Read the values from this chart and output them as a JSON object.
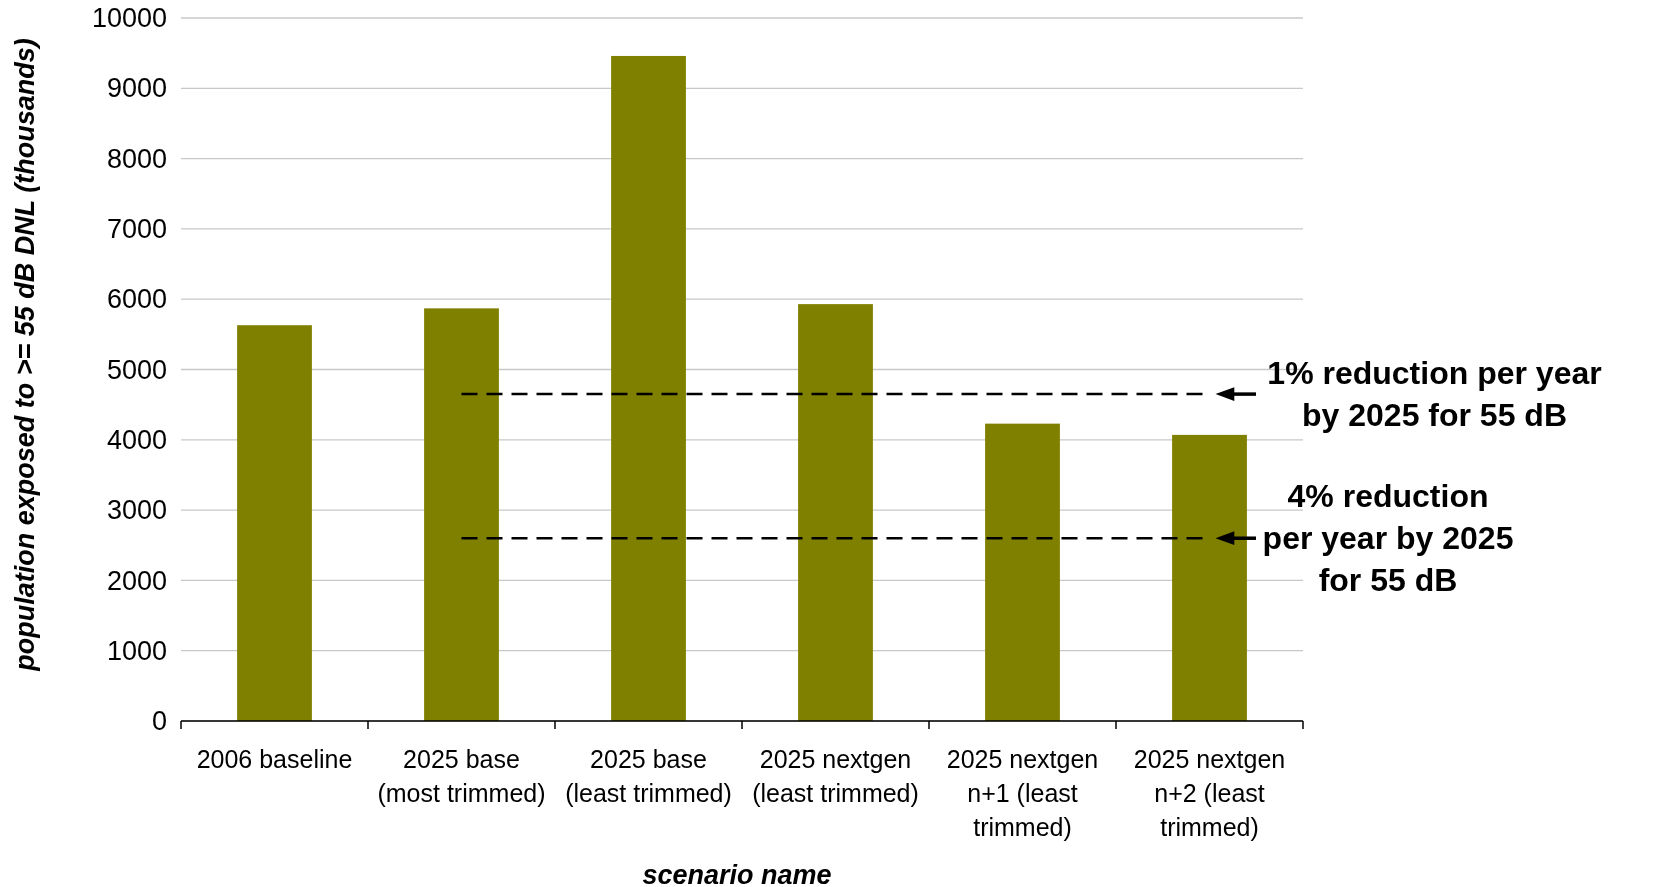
{
  "chart_data": {
    "type": "bar",
    "xlabel": "scenario name",
    "ylabel": "population exposed to >= 55 dB DNL (thousands)",
    "categories": [
      "2006 baseline",
      "2025 base (most trimmed)",
      "2025 base (least trimmed)",
      "2025 nextgen (least trimmed)",
      "2025 nextgen n+1 (least trimmed)",
      "2025 nextgen n+2 (least trimmed)"
    ],
    "values": [
      5630,
      5870,
      9460,
      5930,
      4230,
      4070
    ],
    "color": "#808000",
    "ylim": [
      0,
      10000
    ],
    "yticks": [
      0,
      1000,
      2000,
      3000,
      4000,
      5000,
      6000,
      7000,
      8000,
      9000,
      10000
    ],
    "grid": "y",
    "ref_lines": [
      {
        "axis": "y",
        "value": 4650,
        "label": "1% reduction per year by 2025 for 55 dB",
        "color": "#000000",
        "line_style": "dashed"
      },
      {
        "axis": "y",
        "value": 2600,
        "label": "4% reduction per year by 2025 for 55 dB",
        "color": "#000000",
        "line_style": "dashed"
      }
    ]
  }
}
